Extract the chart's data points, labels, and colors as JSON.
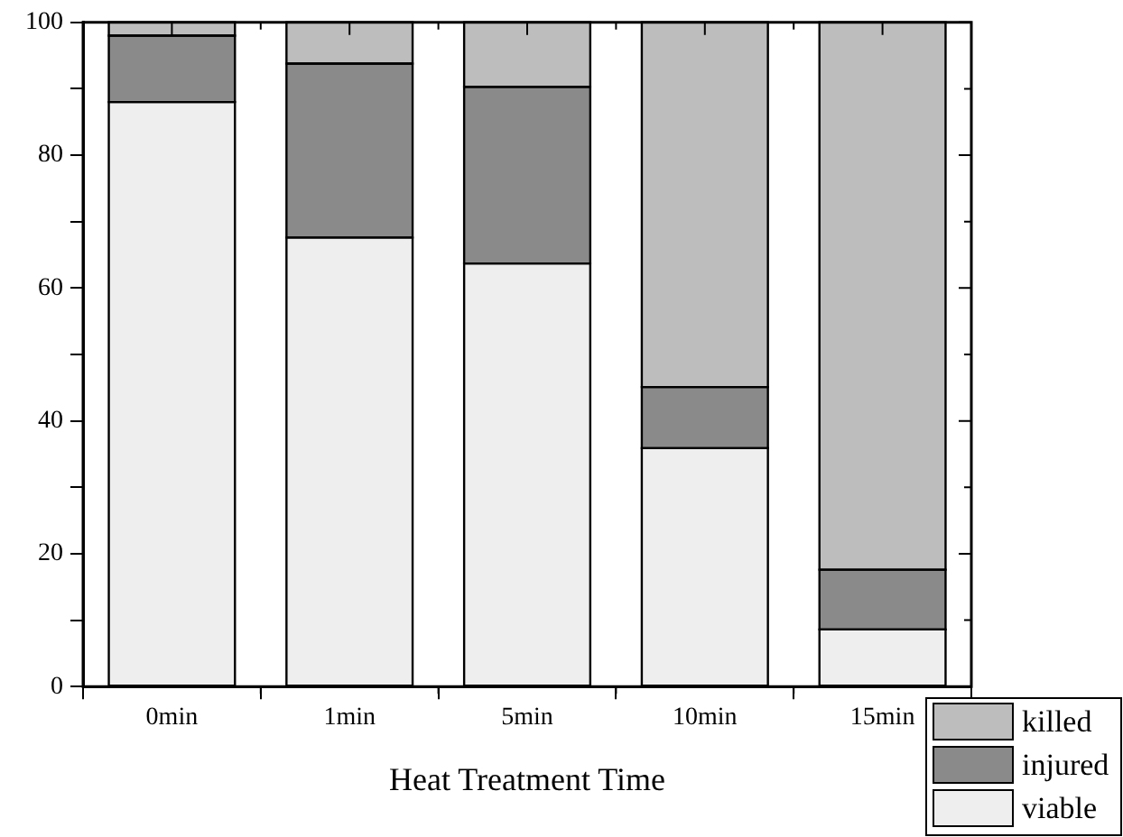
{
  "chart_data": {
    "type": "bar",
    "stacked": true,
    "xlabel": "Heat Treatment Time",
    "categories": [
      "0min",
      "1min",
      "5min",
      "10min",
      "15min"
    ],
    "series": [
      {
        "name": "viable",
        "color": "#eeeeee",
        "values": [
          88,
          67.6,
          63.7,
          35.9,
          8.6
        ]
      },
      {
        "name": "injured",
        "color": "#8a8a8a",
        "values": [
          10,
          26.2,
          26.6,
          9.2,
          9
        ]
      },
      {
        "name": "killed",
        "color": "#bdbdbd",
        "values": [
          2,
          6.2,
          9.7,
          54.9,
          82.4
        ]
      }
    ],
    "ylim": [
      0,
      100
    ],
    "yticks": [
      0,
      {
        "value": 10,
        "label": null
      },
      20,
      {
        "value": 30,
        "label": null
      },
      40,
      {
        "value": 50,
        "label": null
      },
      60,
      {
        "value": 70,
        "label": null
      },
      80,
      {
        "value": 90,
        "label": null
      },
      100
    ],
    "grid": false,
    "legend": "bottom right"
  }
}
